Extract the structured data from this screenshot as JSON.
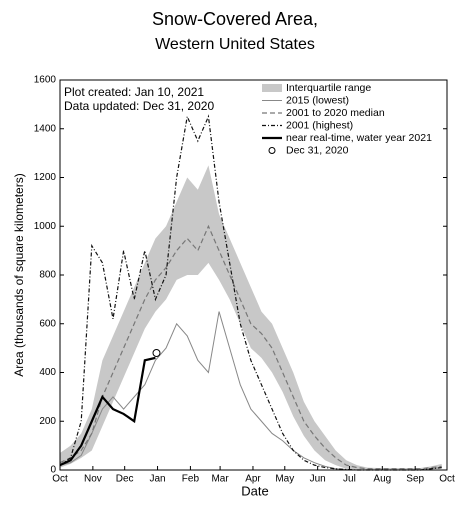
{
  "chart_data": {
    "type": "line",
    "title": "Snow-Covered Area,",
    "subtitle": "Western United States",
    "annotations": [
      "Plot created: Jan 10, 2021",
      "Data updated: Dec 31, 2020"
    ],
    "xlabel": "Date",
    "ylabel": "Area (thousands of square kilometers)",
    "xlim": [
      0,
      365
    ],
    "xticks": [
      {
        "value": 0,
        "label": "Oct"
      },
      {
        "value": 31,
        "label": "Nov"
      },
      {
        "value": 61,
        "label": "Dec"
      },
      {
        "value": 92,
        "label": "Jan"
      },
      {
        "value": 123,
        "label": "Feb"
      },
      {
        "value": 151,
        "label": "Mar"
      },
      {
        "value": 182,
        "label": "Apr"
      },
      {
        "value": 212,
        "label": "May"
      },
      {
        "value": 243,
        "label": "Jun"
      },
      {
        "value": 273,
        "label": "Jul"
      },
      {
        "value": 304,
        "label": "Aug"
      },
      {
        "value": 335,
        "label": "Sep"
      },
      {
        "value": 365,
        "label": "Oct"
      }
    ],
    "ylim": [
      0,
      1600
    ],
    "yticks": [
      0,
      200,
      400,
      600,
      800,
      1000,
      1200,
      1400,
      1600
    ],
    "x": [
      0,
      10,
      20,
      30,
      40,
      50,
      60,
      70,
      80,
      90,
      100,
      110,
      120,
      130,
      140,
      150,
      160,
      170,
      180,
      190,
      200,
      210,
      220,
      230,
      240,
      250,
      260,
      270,
      280,
      290,
      300,
      310,
      320,
      330,
      340,
      350,
      360
    ],
    "band": {
      "name": "Interquartile range",
      "color": "#c8c8c8",
      "upper": [
        70,
        100,
        150,
        250,
        450,
        550,
        650,
        750,
        850,
        950,
        1000,
        1100,
        1200,
        1150,
        1250,
        1050,
        950,
        850,
        750,
        650,
        600,
        500,
        400,
        280,
        200,
        140,
        80,
        40,
        20,
        10,
        8,
        8,
        8,
        8,
        8,
        15,
        25
      ],
      "lower": [
        10,
        25,
        50,
        80,
        180,
        280,
        380,
        480,
        580,
        650,
        700,
        780,
        800,
        800,
        850,
        780,
        700,
        600,
        500,
        460,
        400,
        320,
        220,
        140,
        80,
        40,
        20,
        5,
        2,
        1,
        1,
        1,
        1,
        1,
        1,
        3,
        5
      ]
    },
    "series": [
      {
        "name": "2015 (lowest)",
        "color": "#888888",
        "width": 1,
        "dash": "none",
        "values": [
          20,
          30,
          60,
          150,
          250,
          300,
          250,
          300,
          350,
          450,
          500,
          600,
          550,
          450,
          400,
          650,
          500,
          350,
          250,
          200,
          150,
          120,
          80,
          50,
          30,
          15,
          5,
          2,
          0,
          0,
          0,
          0,
          0,
          0,
          0,
          5,
          10
        ]
      },
      {
        "name": "2001 to 2020 median",
        "color": "#777777",
        "width": 1.2,
        "dash": "5 3",
        "values": [
          30,
          50,
          80,
          150,
          300,
          400,
          500,
          600,
          700,
          780,
          830,
          900,
          950,
          900,
          1000,
          900,
          800,
          700,
          600,
          560,
          500,
          400,
          300,
          200,
          140,
          90,
          50,
          20,
          10,
          5,
          5,
          5,
          5,
          5,
          5,
          10,
          15
        ]
      },
      {
        "name": "2001 (highest)",
        "color": "#111111",
        "width": 1.2,
        "dash": "4 2 1 2",
        "values": [
          20,
          50,
          200,
          920,
          850,
          620,
          900,
          700,
          900,
          700,
          800,
          1200,
          1450,
          1350,
          1450,
          1100,
          850,
          600,
          450,
          350,
          250,
          150,
          80,
          40,
          20,
          10,
          5,
          2,
          0,
          0,
          0,
          0,
          0,
          0,
          0,
          5,
          10
        ]
      },
      {
        "name": "near real-time, water year 2021",
        "color": "#000000",
        "width": 2.2,
        "dash": "none",
        "values": [
          20,
          40,
          100,
          200,
          300,
          250,
          230,
          200,
          450,
          460,
          null,
          null,
          null,
          null,
          null,
          null,
          null,
          null,
          null,
          null,
          null,
          null,
          null,
          null,
          null,
          null,
          null,
          null,
          null,
          null,
          null,
          null,
          null,
          null,
          null,
          null,
          null
        ]
      }
    ],
    "marker": {
      "name": "Dec 31, 2020",
      "x": 91,
      "value": 480,
      "color": "#000000"
    }
  }
}
